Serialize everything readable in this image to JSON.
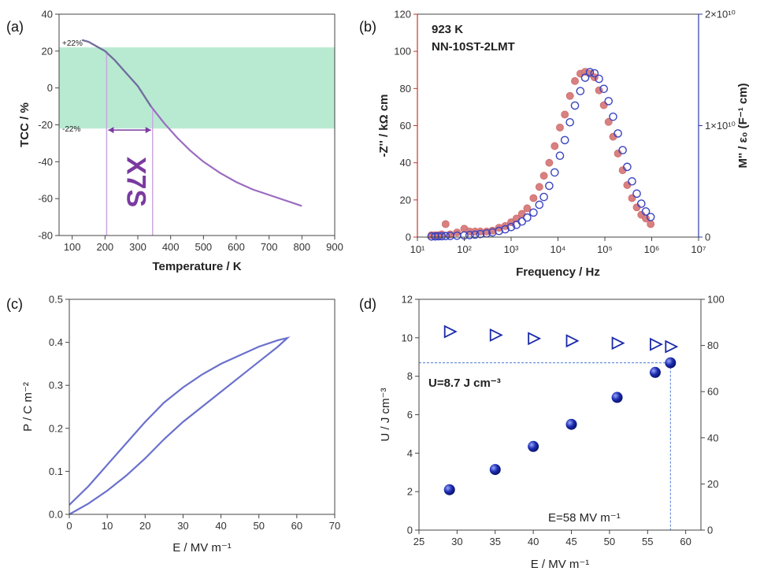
{
  "chart_data": [
    {
      "panel": "(a)",
      "type": "line",
      "xlabel": "Temperature / K",
      "ylabel": "TCC / %",
      "xlim": [
        60,
        900
      ],
      "ylim": [
        -80,
        40
      ],
      "xticks": [
        "100",
        "200",
        "300",
        "400",
        "500",
        "600",
        "700",
        "800",
        "900"
      ],
      "yticks": [
        "40",
        "20",
        "0",
        "-20",
        "-40",
        "-60",
        "-80"
      ],
      "band": {
        "from": -22,
        "to": 22,
        "upper_label": "+22%",
        "lower_label": "-22%",
        "color": "#b8ead2"
      },
      "annotation": {
        "text": "X7S",
        "x_start": 205,
        "x_end": 345,
        "color": "#7a3aa0"
      },
      "series": [
        {
          "color": "#9b6bc0",
          "highlight_color": "#6f6f9a",
          "x": [
            130,
            150,
            170,
            200,
            230,
            260,
            300,
            340,
            380,
            420,
            460,
            500,
            550,
            600,
            650,
            700,
            750,
            800
          ],
          "y": [
            26,
            25,
            23,
            20,
            15,
            9,
            1,
            -10,
            -19,
            -27,
            -34,
            -40,
            -46,
            -51,
            -55,
            -58,
            -61,
            -64
          ]
        }
      ]
    },
    {
      "panel": "(b)",
      "type": "scatter",
      "annotations": [
        "923 K",
        "NN-10ST-2LMT"
      ],
      "xlabel": "Frequency / Hz",
      "ylabel_left": "-Z'' / kΩ cm",
      "ylabel_right": "M'' / ε₀ (F⁻¹ cm)",
      "xscale": "log",
      "xlim": [
        10,
        10000000
      ],
      "ylim_left": [
        0,
        120
      ],
      "ylim_right": [
        0,
        20000000000
      ],
      "xticks": [
        "10¹",
        "10²",
        "10³",
        "10⁴",
        "10⁵",
        "10⁶",
        "10⁷"
      ],
      "yticks_left": [
        "0",
        "20",
        "40",
        "60",
        "80",
        "100",
        "120"
      ],
      "yticks_right": [
        "0",
        "1×10¹⁰",
        "2×10¹⁰"
      ],
      "left_axis_color": "#c0392b",
      "right_axis_color": "#2d3ab0",
      "series": [
        {
          "axis": "left",
          "marker": "filled-circle",
          "color": "#d98080",
          "x": [
            20,
            24,
            28,
            33,
            40,
            50,
            70,
            100,
            130,
            170,
            220,
            300,
            400,
            550,
            750,
            1000,
            1300,
            1700,
            2200,
            3000,
            4000,
            5000,
            6500,
            8500,
            11000,
            14000,
            18000,
            23000,
            30000,
            38000,
            48000,
            60000,
            75000,
            95000,
            120000,
            150000,
            190000,
            240000,
            300000,
            380000,
            480000,
            600000,
            750000,
            950000
          ],
          "y": [
            1,
            1,
            1,
            1.5,
            7,
            1.5,
            2.5,
            4.5,
            3,
            3,
            3,
            3,
            3.5,
            5,
            6,
            8,
            10,
            12.5,
            15.5,
            21,
            27,
            33,
            40,
            49,
            59,
            66,
            76,
            84,
            88,
            89,
            88,
            86,
            79,
            71,
            62,
            54,
            45,
            36,
            28,
            21,
            16,
            12,
            10,
            7
          ]
        },
        {
          "axis": "right",
          "marker": "open-circle",
          "color": "#3a44c0",
          "x": [
            20,
            24,
            28,
            33,
            40,
            50,
            70,
            100,
            130,
            170,
            220,
            300,
            400,
            550,
            750,
            1000,
            1300,
            1700,
            2200,
            3000,
            4000,
            5000,
            6500,
            8500,
            11000,
            14000,
            18000,
            23000,
            30000,
            38000,
            48000,
            60000,
            75000,
            95000,
            120000,
            150000,
            190000,
            240000,
            300000,
            380000,
            480000,
            600000,
            750000,
            950000
          ],
          "y": [
            50000000,
            60000000,
            70000000,
            80000000,
            90000000,
            100000000,
            120000000,
            150000000,
            180000000,
            220000000,
            270000000,
            330000000,
            420000000,
            550000000,
            700000000,
            900000000,
            1100000000,
            1400000000,
            1750000000,
            2200000000,
            2900000000,
            3600000000,
            4600000000,
            5800000000,
            7300000000,
            8700000000,
            10300000000,
            11800000000,
            13100000000,
            14300000000,
            14800000000,
            14700000000,
            14200000000,
            13300000000,
            12200000000,
            10800000000,
            9300000000,
            7800000000,
            6300000000,
            5000000000,
            3900000000,
            3000000000,
            2300000000,
            1800000000
          ]
        }
      ]
    },
    {
      "panel": "(c)",
      "type": "line",
      "xlabel": "E / MV m⁻¹",
      "ylabel": "P / C m⁻²",
      "xlim": [
        0,
        70
      ],
      "ylim": [
        0,
        0.5
      ],
      "xticks": [
        "0",
        "10",
        "20",
        "30",
        "40",
        "50",
        "60",
        "70"
      ],
      "yticks": [
        "0.0",
        "0.1",
        "0.2",
        "0.3",
        "0.4",
        "0.5"
      ],
      "series": [
        {
          "name": "",
          "color": "#6a70cc",
          "x": [
            0,
            5,
            10,
            15,
            20,
            25,
            30,
            35,
            40,
            45,
            50,
            55,
            57.5,
            55,
            50,
            45,
            40,
            35,
            30,
            25,
            20,
            15,
            10,
            5,
            0
          ],
          "y": [
            0,
            0.025,
            0.055,
            0.09,
            0.13,
            0.175,
            0.215,
            0.25,
            0.285,
            0.32,
            0.355,
            0.39,
            0.41,
            0.405,
            0.39,
            0.37,
            0.35,
            0.325,
            0.295,
            0.26,
            0.215,
            0.165,
            0.115,
            0.065,
            0.022
          ]
        }
      ]
    },
    {
      "panel": "(d)",
      "type": "scatter",
      "xlabel": "E / MV m⁻¹",
      "ylabel_left": "U / J cm⁻³",
      "xlim": [
        25,
        62
      ],
      "ylim_left": [
        0,
        12
      ],
      "ylim_right": [
        0,
        100
      ],
      "xticks": [
        "25",
        "30",
        "35",
        "40",
        "45",
        "50",
        "55",
        "60"
      ],
      "yticks_left": [
        "0",
        "2",
        "4",
        "6",
        "8",
        "10",
        "12"
      ],
      "yticks_right": [
        "0",
        "20",
        "40",
        "60",
        "80",
        "100"
      ],
      "annotations": {
        "u_text": "U=8.7 J cm⁻³",
        "e_text": "E=58 MV m⁻¹",
        "u_value": 8.7,
        "e_value": 58
      },
      "series": [
        {
          "axis": "left",
          "marker": "filled-sphere",
          "color": "#1a2aa8",
          "x": [
            29,
            35,
            40,
            45,
            51,
            56,
            58
          ],
          "y": [
            2.1,
            3.15,
            4.35,
            5.5,
            6.9,
            8.2,
            8.7
          ]
        },
        {
          "axis": "right",
          "marker": "open-triangle",
          "color": "#1a2aa8",
          "x": [
            29,
            35,
            40,
            45,
            51,
            56,
            58
          ],
          "y": [
            86,
            84.5,
            83,
            82,
            81,
            80.5,
            79.5
          ]
        }
      ]
    }
  ]
}
